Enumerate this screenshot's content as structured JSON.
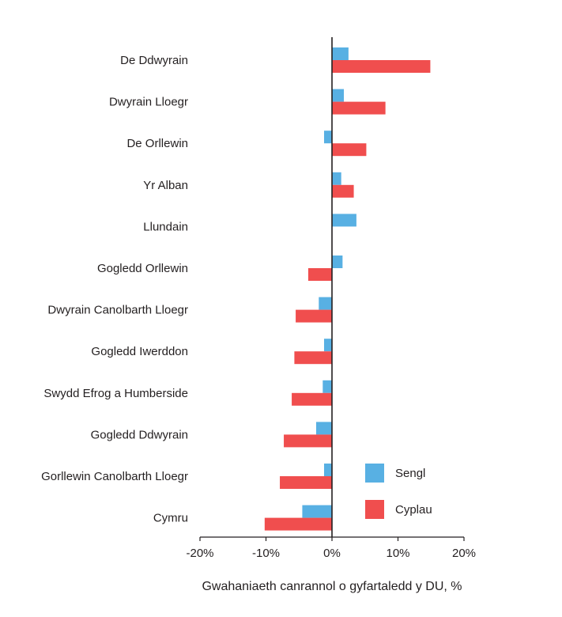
{
  "chart_data": {
    "type": "bar",
    "orientation": "horizontal",
    "title": "",
    "xlabel": "Gwahaniaeth canrannol o gyfartaledd y DU, %",
    "ylabel": "",
    "xlim": [
      -20,
      20
    ],
    "xticks": [
      -20,
      -10,
      0,
      10,
      20
    ],
    "xtick_labels": [
      "-20%",
      "-10%",
      "0%",
      "10%",
      "20%"
    ],
    "grid": false,
    "legend_position": "bottom-right",
    "categories": [
      "De Ddwyrain",
      "Dwyrain Lloegr",
      "De Orllewin",
      "Yr Alban",
      "Llundain",
      "Gogledd Orllewin",
      "Dwyrain Canolbarth Lloegr",
      "Gogledd Iwerddon",
      "Swydd Efrog a Humberside",
      "Gogledd Ddwyrain",
      "Gorllewin Canolbarth Lloegr",
      "Cymru"
    ],
    "series": [
      {
        "name": "Sengl",
        "color": "#58b0e3",
        "values": [
          2.5,
          1.8,
          -1.2,
          1.4,
          3.7,
          1.6,
          -2.0,
          -1.2,
          -1.4,
          -2.4,
          -1.2,
          -4.5
        ]
      },
      {
        "name": "Cyplau",
        "color": "#f04e4e",
        "values": [
          14.9,
          8.1,
          5.2,
          3.3,
          0,
          -3.6,
          -5.5,
          -5.7,
          -6.1,
          -7.3,
          -7.9,
          -10.2
        ]
      }
    ]
  }
}
